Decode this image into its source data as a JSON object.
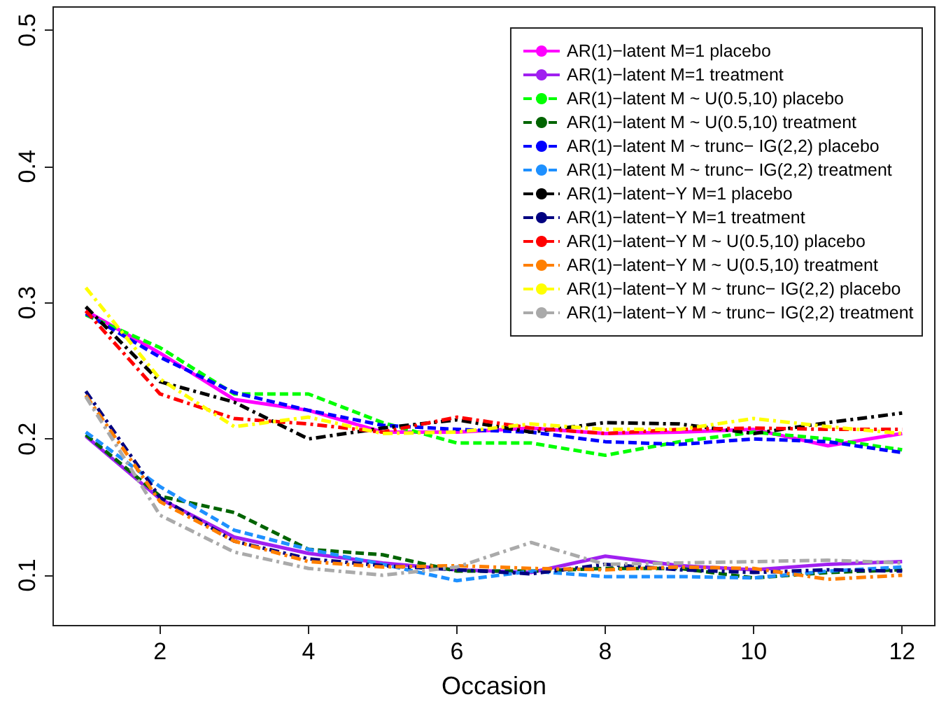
{
  "chart_data": {
    "type": "line",
    "xlabel": "Occasion",
    "xlim": [
      0.56,
      12.44
    ],
    "xticks": [
      2,
      4,
      6,
      8,
      10,
      12
    ],
    "ylim": [
      0.063,
      0.517
    ],
    "yticks": [
      0.1,
      0.2,
      0.3,
      0.4,
      0.5
    ],
    "grid": false,
    "legend": "top right",
    "marker": "none",
    "x": [
      1,
      2,
      3,
      4,
      5,
      6,
      7,
      8,
      9,
      10,
      11,
      12
    ],
    "series": [
      {
        "name": "AR(1)−latent M=1 placebo",
        "color": "#ff00ff",
        "line_style": "solid",
        "values": [
          0.294,
          0.263,
          0.229,
          0.221,
          0.205,
          0.205,
          0.208,
          0.204,
          0.205,
          0.207,
          0.195,
          0.204
        ]
      },
      {
        "name": "AR(1)−latent M=1 treatment",
        "color": "#a020f0",
        "line_style": "solid",
        "values": [
          0.202,
          0.156,
          0.128,
          0.116,
          0.109,
          0.104,
          0.102,
          0.114,
          0.107,
          0.104,
          0.108,
          0.11
        ]
      },
      {
        "name": "AR(1)−latent M ~ U(0.5,10) placebo",
        "color": "#00ff00",
        "line_style": "dashed",
        "values": [
          0.291,
          0.267,
          0.233,
          0.233,
          0.212,
          0.197,
          0.197,
          0.188,
          0.198,
          0.205,
          0.2,
          0.192
        ]
      },
      {
        "name": "AR(1)−latent M ~ U(0.5,10) treatment",
        "color": "#006400",
        "line_style": "dashed",
        "values": [
          0.203,
          0.158,
          0.146,
          0.119,
          0.115,
          0.103,
          0.103,
          0.105,
          0.105,
          0.098,
          0.102,
          0.104
        ]
      },
      {
        "name": "AR(1)−latent M ~ trunc− IG(2,2) placebo",
        "color": "#0000ff",
        "line_style": "dashed",
        "values": [
          0.292,
          0.26,
          0.234,
          0.221,
          0.21,
          0.207,
          0.205,
          0.198,
          0.196,
          0.2,
          0.198,
          0.19
        ]
      },
      {
        "name": "AR(1)−latent M ~ trunc− IG(2,2) treatment",
        "color": "#1e90ff",
        "line_style": "dashed",
        "values": [
          0.205,
          0.165,
          0.133,
          0.119,
          0.108,
          0.096,
          0.103,
          0.099,
          0.099,
          0.098,
          0.103,
          0.106
        ]
      },
      {
        "name": "AR(1)−latent−Y M=1 placebo",
        "color": "#000000",
        "line_style": "dashdot",
        "values": [
          0.297,
          0.242,
          0.227,
          0.2,
          0.208,
          0.214,
          0.205,
          0.212,
          0.211,
          0.204,
          0.212,
          0.219
        ]
      },
      {
        "name": "AR(1)−latent−Y M=1 treatment",
        "color": "#000080",
        "line_style": "dashdot",
        "values": [
          0.235,
          0.157,
          0.125,
          0.112,
          0.107,
          0.104,
          0.101,
          0.108,
          0.104,
          0.102,
          0.104,
          0.103
        ]
      },
      {
        "name": "AR(1)−latent−Y M ~ U(0.5,10) placebo",
        "color": "#ff0000",
        "line_style": "dashdot",
        "values": [
          0.294,
          0.233,
          0.215,
          0.211,
          0.205,
          0.216,
          0.208,
          0.204,
          0.207,
          0.208,
          0.207,
          0.207
        ]
      },
      {
        "name": "AR(1)−latent−Y M ~ U(0.5,10) treatment",
        "color": "#ff7f00",
        "line_style": "dashdot",
        "values": [
          0.232,
          0.154,
          0.125,
          0.11,
          0.106,
          0.107,
          0.105,
          0.104,
          0.106,
          0.105,
          0.097,
          0.1
        ]
      },
      {
        "name": "AR(1)−latent−Y M ~ trunc− IG(2,2) placebo",
        "color": "#ffff00",
        "line_style": "dashdot",
        "values": [
          0.311,
          0.244,
          0.209,
          0.216,
          0.204,
          0.205,
          0.211,
          0.207,
          0.207,
          0.215,
          0.209,
          0.204
        ]
      },
      {
        "name": "AR(1)−latent−Y M ~ trunc− IG(2,2) treatment",
        "color": "#aaaaaa",
        "line_style": "dashdot",
        "values": [
          0.231,
          0.144,
          0.117,
          0.105,
          0.1,
          0.106,
          0.124,
          0.108,
          0.109,
          0.11,
          0.111,
          0.109
        ]
      }
    ]
  }
}
